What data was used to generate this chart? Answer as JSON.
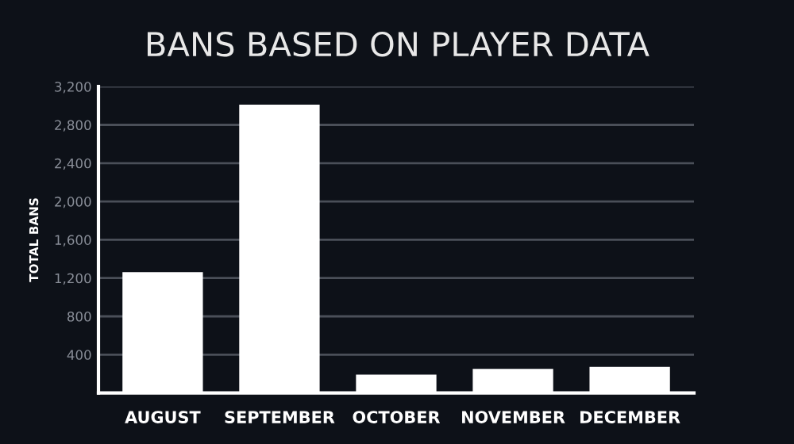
{
  "chart_data": {
    "type": "bar",
    "title": "BANS BASED ON PLAYER DATA",
    "ylabel": "TOTAL BANS",
    "categories": [
      "AUGUST",
      "SEPTEMBER",
      "OCTOBER",
      "NOVEMBER",
      "DECEMBER"
    ],
    "values": [
      1250,
      3000,
      180,
      240,
      260
    ],
    "color": "#ffffff",
    "ylim": [
      0,
      3200
    ],
    "yticks": [
      {
        "value": 0,
        "label": null
      },
      {
        "value": 400,
        "label": "400"
      },
      {
        "value": 800,
        "label": "800"
      },
      {
        "value": 1200,
        "label": "1,200"
      },
      {
        "value": 1600,
        "label": "1,600"
      },
      {
        "value": 2000,
        "label": "2,000"
      },
      {
        "value": 2400,
        "label": "2,400"
      },
      {
        "value": 2800,
        "label": "2,800"
      },
      {
        "value": 3200,
        "label": "3,200"
      }
    ],
    "grid": "y"
  }
}
